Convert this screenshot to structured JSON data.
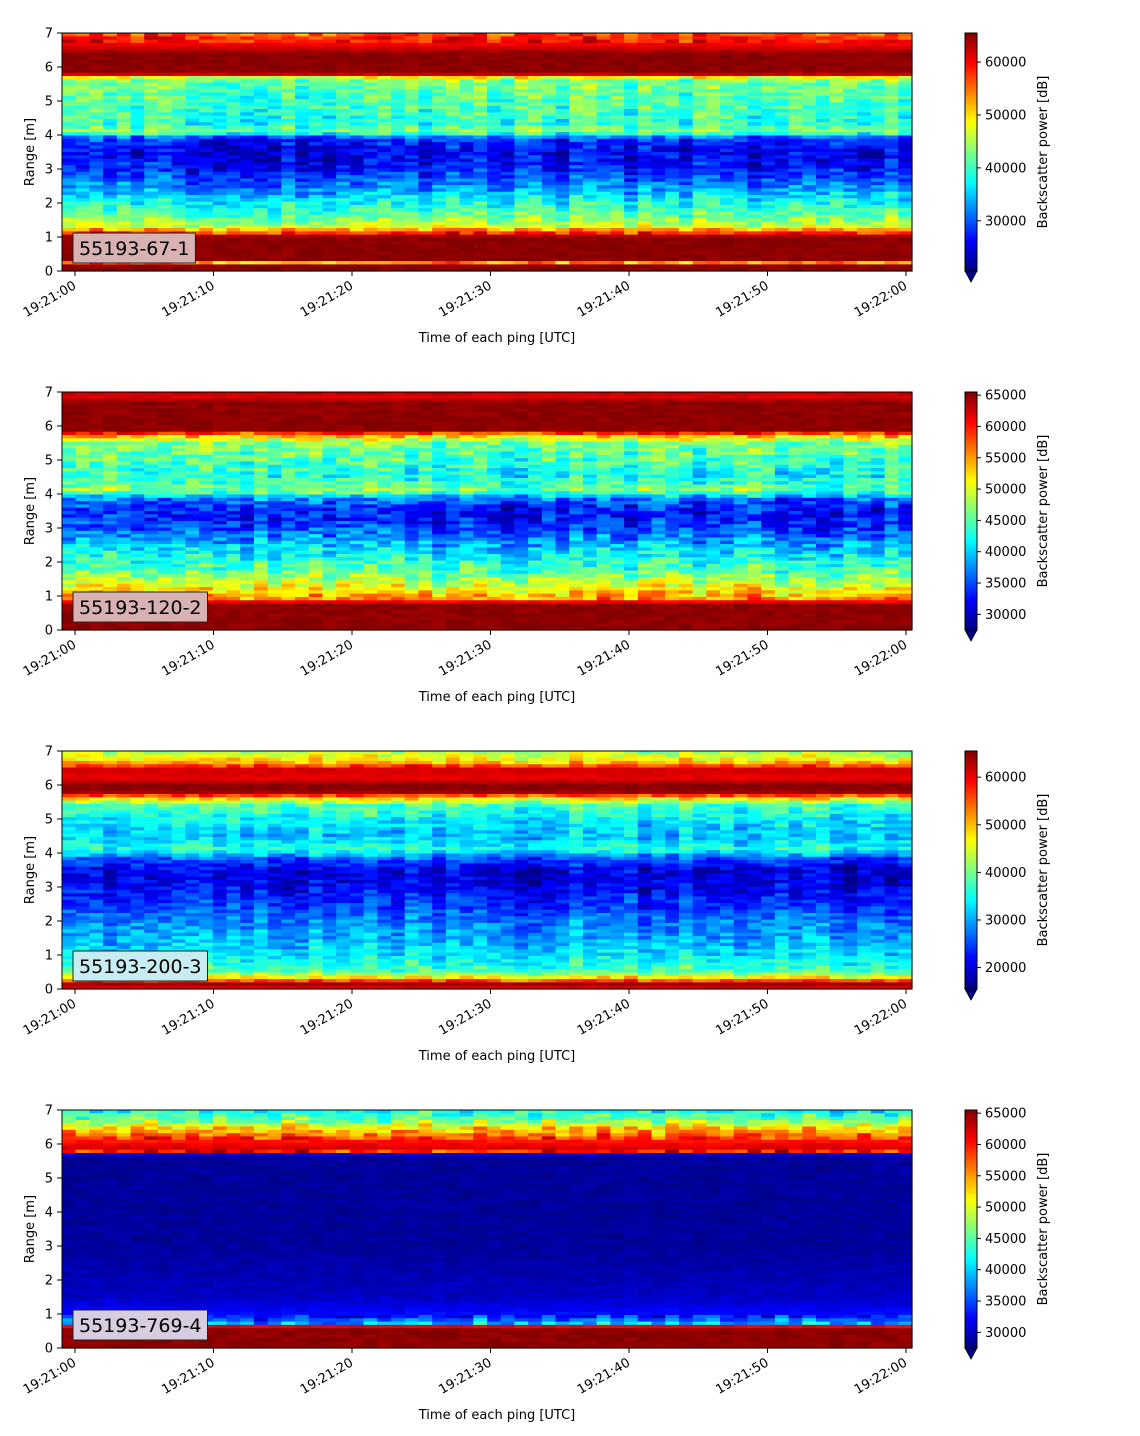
{
  "figure": {
    "colormap": "jet",
    "panels": [
      {
        "tag": "55193-67-1",
        "tag_bg": "#d8b2b2",
        "xlabel": "Time of each ping [UTC]",
        "ylabel": "Range [m]",
        "cbar_label": "Backscatter power [dB]"
      },
      {
        "tag": "55193-120-2",
        "tag_bg": "#d8b2b2",
        "xlabel": "Time of each ping [UTC]",
        "ylabel": "Range [m]",
        "cbar_label": "Backscatter power [dB]"
      },
      {
        "tag": "55193-200-3",
        "tag_bg": "#c7ecf2",
        "xlabel": "Time of each ping [UTC]",
        "ylabel": "Range [m]",
        "cbar_label": "Backscatter power [dB]"
      },
      {
        "tag": "55193-769-4",
        "tag_bg": "#d8cde0",
        "xlabel": "Time of each ping [UTC]",
        "ylabel": "Range [m]",
        "cbar_label": "Backscatter power [dB]"
      }
    ]
  },
  "chart_data": [
    {
      "type": "heatmap",
      "xlabel": "Time of each ping [UTC]",
      "ylabel": "Range [m]",
      "x_ticks": [
        "19:21:00",
        "19:21:10",
        "19:21:20",
        "19:21:30",
        "19:21:40",
        "19:21:50",
        "19:22:00"
      ],
      "y_ticks": [
        "0",
        "1",
        "2",
        "3",
        "4",
        "5",
        "6",
        "7"
      ],
      "ylim": [
        0,
        7
      ],
      "colorbar": {
        "label": "Backscatter power [dB]",
        "ticks": [
          "30000",
          "40000",
          "50000",
          "60000"
        ],
        "range": [
          20500,
          65500
        ]
      },
      "profile": [
        {
          "range": 0.0,
          "value": 65000
        },
        {
          "range": 0.22,
          "value": 65000
        },
        {
          "range": 0.25,
          "value": 50000
        },
        {
          "range": 0.28,
          "value": 65000
        },
        {
          "range": 1.0,
          "value": 65000
        },
        {
          "range": 1.15,
          "value": 56000
        },
        {
          "range": 1.3,
          "value": 47000
        },
        {
          "range": 1.6,
          "value": 42000
        },
        {
          "range": 2.0,
          "value": 38000
        },
        {
          "range": 2.5,
          "value": 32000
        },
        {
          "range": 3.0,
          "value": 27000
        },
        {
          "range": 3.5,
          "value": 25000
        },
        {
          "range": 3.9,
          "value": 28000
        },
        {
          "range": 4.1,
          "value": 44000
        },
        {
          "range": 4.3,
          "value": 39000
        },
        {
          "range": 4.7,
          "value": 40000
        },
        {
          "range": 5.2,
          "value": 41000
        },
        {
          "range": 5.6,
          "value": 43000
        },
        {
          "range": 5.72,
          "value": 50000
        },
        {
          "range": 5.8,
          "value": 65000
        },
        {
          "range": 6.4,
          "value": 65000
        },
        {
          "range": 6.6,
          "value": 61000
        },
        {
          "range": 6.9,
          "value": 58000
        },
        {
          "range": 7.0,
          "value": 55000
        }
      ]
    },
    {
      "type": "heatmap",
      "xlabel": "Time of each ping [UTC]",
      "ylabel": "Range [m]",
      "x_ticks": [
        "19:21:00",
        "19:21:10",
        "19:21:20",
        "19:21:30",
        "19:21:40",
        "19:21:50",
        "19:22:00"
      ],
      "y_ticks": [
        "0",
        "1",
        "2",
        "3",
        "4",
        "5",
        "6",
        "7"
      ],
      "ylim": [
        0,
        7
      ],
      "colorbar": {
        "label": "Backscatter power [dB]",
        "ticks": [
          "30000",
          "35000",
          "40000",
          "45000",
          "50000",
          "55000",
          "60000",
          "65000"
        ],
        "range": [
          27500,
          65500
        ]
      },
      "profile": [
        {
          "range": 0.0,
          "value": 65000
        },
        {
          "range": 0.78,
          "value": 65000
        },
        {
          "range": 0.9,
          "value": 55000
        },
        {
          "range": 1.3,
          "value": 50000
        },
        {
          "range": 1.8,
          "value": 44000
        },
        {
          "range": 2.5,
          "value": 39000
        },
        {
          "range": 3.0,
          "value": 34000
        },
        {
          "range": 3.5,
          "value": 32000
        },
        {
          "range": 3.85,
          "value": 36000
        },
        {
          "range": 4.1,
          "value": 46000
        },
        {
          "range": 4.5,
          "value": 42000
        },
        {
          "range": 5.0,
          "value": 44000
        },
        {
          "range": 5.5,
          "value": 46000
        },
        {
          "range": 5.75,
          "value": 55000
        },
        {
          "range": 5.85,
          "value": 65000
        },
        {
          "range": 6.7,
          "value": 65000
        },
        {
          "range": 6.85,
          "value": 62000
        },
        {
          "range": 7.0,
          "value": 63000
        }
      ]
    },
    {
      "type": "heatmap",
      "xlabel": "Time of each ping [UTC]",
      "ylabel": "Range [m]",
      "x_ticks": [
        "19:21:00",
        "19:21:10",
        "19:21:20",
        "19:21:30",
        "19:21:40",
        "19:21:50",
        "19:22:00"
      ],
      "y_ticks": [
        "0",
        "1",
        "2",
        "3",
        "4",
        "5",
        "6",
        "7"
      ],
      "ylim": [
        0,
        7
      ],
      "colorbar": {
        "label": "Backscatter power [dB]",
        "ticks": [
          "20000",
          "30000",
          "40000",
          "50000",
          "60000"
        ],
        "range": [
          15500,
          65500
        ]
      },
      "profile": [
        {
          "range": 0.0,
          "value": 60000
        },
        {
          "range": 0.15,
          "value": 64000
        },
        {
          "range": 0.3,
          "value": 50000
        },
        {
          "range": 0.5,
          "value": 38000
        },
        {
          "range": 1.0,
          "value": 33000
        },
        {
          "range": 1.5,
          "value": 30000
        },
        {
          "range": 2.0,
          "value": 28000
        },
        {
          "range": 2.5,
          "value": 24000
        },
        {
          "range": 3.0,
          "value": 21000
        },
        {
          "range": 3.5,
          "value": 20000
        },
        {
          "range": 3.85,
          "value": 26000
        },
        {
          "range": 4.1,
          "value": 36000
        },
        {
          "range": 4.5,
          "value": 31000
        },
        {
          "range": 5.0,
          "value": 34000
        },
        {
          "range": 5.4,
          "value": 38000
        },
        {
          "range": 5.6,
          "value": 48000
        },
        {
          "range": 5.8,
          "value": 65000
        },
        {
          "range": 6.0,
          "value": 65000
        },
        {
          "range": 6.2,
          "value": 60000
        },
        {
          "range": 6.45,
          "value": 62000
        },
        {
          "range": 6.7,
          "value": 48000
        },
        {
          "range": 7.0,
          "value": 42000
        }
      ]
    },
    {
      "type": "heatmap",
      "xlabel": "Time of each ping [UTC]",
      "ylabel": "Range [m]",
      "x_ticks": [
        "19:21:00",
        "19:21:10",
        "19:21:20",
        "19:21:30",
        "19:21:40",
        "19:21:50",
        "19:22:00"
      ],
      "y_ticks": [
        "0",
        "1",
        "2",
        "3",
        "4",
        "5",
        "6",
        "7"
      ],
      "ylim": [
        0,
        7
      ],
      "colorbar": {
        "label": "Backscatter power [dB]",
        "ticks": [
          "30000",
          "35000",
          "40000",
          "45000",
          "50000",
          "55000",
          "60000",
          "65000"
        ],
        "range": [
          27500,
          65500
        ]
      },
      "profile": [
        {
          "range": 0.0,
          "value": 65000
        },
        {
          "range": 0.62,
          "value": 65000
        },
        {
          "range": 0.7,
          "value": 40000
        },
        {
          "range": 0.9,
          "value": 33000
        },
        {
          "range": 1.5,
          "value": 30000
        },
        {
          "range": 2.0,
          "value": 29500
        },
        {
          "range": 3.0,
          "value": 28500
        },
        {
          "range": 5.6,
          "value": 28500
        },
        {
          "range": 5.72,
          "value": 32000
        },
        {
          "range": 5.76,
          "value": 55000
        },
        {
          "range": 5.8,
          "value": 63000
        },
        {
          "range": 6.1,
          "value": 60000
        },
        {
          "range": 6.4,
          "value": 54000
        },
        {
          "range": 6.7,
          "value": 46000
        },
        {
          "range": 7.0,
          "value": 42000
        }
      ]
    }
  ]
}
